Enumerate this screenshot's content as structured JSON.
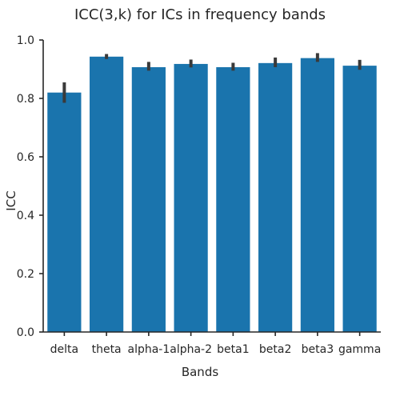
{
  "chart_data": {
    "type": "bar",
    "title": "ICC(3,k) for ICs in frequency bands",
    "xlabel": "Bands",
    "ylabel": "ICC",
    "categories": [
      "delta",
      "theta",
      "alpha-1",
      "alpha-2",
      "beta1",
      "beta2",
      "beta3",
      "gamma"
    ],
    "values": [
      0.82,
      0.943,
      0.907,
      0.918,
      0.907,
      0.921,
      0.938,
      0.912
    ],
    "error_low": [
      0.785,
      0.935,
      0.895,
      0.906,
      0.895,
      0.907,
      0.925,
      0.898
    ],
    "error_high": [
      0.855,
      0.952,
      0.925,
      0.933,
      0.922,
      0.94,
      0.955,
      0.932
    ],
    "ylim": [
      0,
      1.0
    ],
    "yticks": [
      0.0,
      0.2,
      0.4,
      0.6,
      0.8,
      1.0
    ],
    "ytick_labels": [
      "0.0",
      "0.2",
      "0.4",
      "0.6",
      "0.8",
      "1.0"
    ],
    "grid": false,
    "colors": {
      "bar": "#1a74ad",
      "error_bar": "#3a3a3a",
      "axis": "#262626"
    }
  }
}
